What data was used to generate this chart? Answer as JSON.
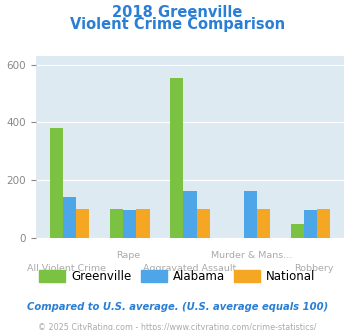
{
  "title_line1": "2018 Greenville",
  "title_line2": "Violent Crime Comparison",
  "title_color": "#2a7fd4",
  "categories": [
    "All Violent Crime",
    "Rape",
    "Aggravated Assault",
    "Murder & Mans...",
    "Robbery"
  ],
  "category_line1": [
    "",
    "Rape",
    "",
    "Murder & Mans...",
    ""
  ],
  "category_line2": [
    "All Violent Crime",
    "",
    "Aggravated Assault",
    "",
    "Robbery"
  ],
  "greenville": [
    380,
    100,
    553,
    0,
    47
  ],
  "alabama": [
    140,
    97,
    162,
    162,
    97
  ],
  "national": [
    100,
    100,
    100,
    100,
    100
  ],
  "colors": {
    "greenville": "#7bc142",
    "alabama": "#4da6e8",
    "national": "#f5a623"
  },
  "ylim": [
    0,
    630
  ],
  "yticks": [
    0,
    200,
    400,
    600
  ],
  "bar_width": 0.22,
  "plot_bg": "#deeaf1",
  "footer_text": "Compared to U.S. average. (U.S. average equals 100)",
  "footer_color": "#2a7fd4",
  "credit_text": "© 2025 CityRating.com - https://www.cityrating.com/crime-statistics/",
  "credit_color": "#aaaaaa",
  "legend_labels": [
    "Greenville",
    "Alabama",
    "National"
  ],
  "grid_color": "#ffffff"
}
